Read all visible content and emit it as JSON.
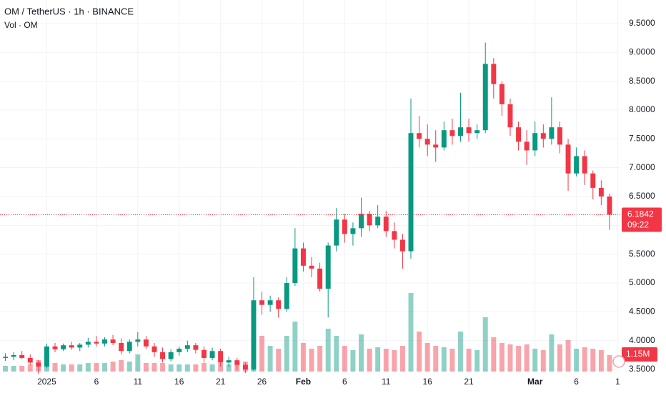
{
  "chart_data": {
    "type": "candlestick",
    "title": "OM / TetherUS · 1h · BINANCE",
    "subtitle": "Vol · OM",
    "up_color": "#089981",
    "down_color": "#f23645",
    "grid": true,
    "x": [
      -5,
      -4,
      -3,
      -2,
      -1,
      0,
      1,
      2,
      3,
      4,
      5,
      6,
      7,
      8,
      9,
      10,
      11,
      12,
      13,
      14,
      15,
      16,
      17,
      18,
      19,
      20,
      21,
      22,
      23,
      24,
      25,
      26,
      27,
      28,
      29,
      30,
      31,
      32,
      33,
      34,
      35,
      36,
      37,
      38,
      39,
      40,
      41,
      42,
      43,
      44,
      45,
      46,
      47,
      48,
      49,
      50,
      51,
      52,
      53,
      54,
      55,
      56,
      57,
      58,
      59,
      60,
      61,
      62,
      63,
      64,
      65,
      66,
      67,
      68
    ],
    "open": [
      3.7,
      3.72,
      3.75,
      3.7,
      3.62,
      3.55,
      3.9,
      3.85,
      3.92,
      3.88,
      3.93,
      3.98,
      3.95,
      4.02,
      3.96,
      3.82,
      3.98,
      4.02,
      3.9,
      3.8,
      3.68,
      3.8,
      3.86,
      3.92,
      3.84,
      3.7,
      3.82,
      3.62,
      3.66,
      3.58,
      3.5,
      4.7,
      4.62,
      4.7,
      4.55,
      5.0,
      5.6,
      5.3,
      5.25,
      4.9,
      5.65,
      6.1,
      5.85,
      5.95,
      6.2,
      6.0,
      6.15,
      5.9,
      5.75,
      5.55,
      7.6,
      7.5,
      7.4,
      7.35,
      7.65,
      7.55,
      7.7,
      7.6,
      7.65,
      8.8,
      8.45,
      8.1,
      7.7,
      7.45,
      7.3,
      7.6,
      7.5,
      7.7,
      7.4,
      6.9,
      7.2,
      6.9,
      6.65,
      6.5
    ],
    "high": [
      3.78,
      3.8,
      3.82,
      3.76,
      3.66,
      3.95,
      3.96,
      3.95,
      3.98,
      3.96,
      4.05,
      4.08,
      4.06,
      4.1,
      4.04,
      4.02,
      4.15,
      4.08,
      3.96,
      3.88,
      3.85,
      3.9,
      4.0,
      3.96,
      3.9,
      3.88,
      3.86,
      3.72,
      3.7,
      3.62,
      5.1,
      4.85,
      4.78,
      4.75,
      5.1,
      5.95,
      5.7,
      5.45,
      5.35,
      5.7,
      6.3,
      6.2,
      6.05,
      6.48,
      6.25,
      6.35,
      6.25,
      6.05,
      5.85,
      8.2,
      7.9,
      7.75,
      7.65,
      7.8,
      7.85,
      8.3,
      7.85,
      7.75,
      9.17,
      8.9,
      8.5,
      8.2,
      7.8,
      7.65,
      7.8,
      7.75,
      8.22,
      7.8,
      7.5,
      7.35,
      7.3,
      6.95,
      6.78,
      6.55
    ],
    "low": [
      3.65,
      3.66,
      3.68,
      3.58,
      3.42,
      3.52,
      3.8,
      3.82,
      3.84,
      3.82,
      3.88,
      3.9,
      3.9,
      3.92,
      3.76,
      3.78,
      3.9,
      3.86,
      3.72,
      3.62,
      3.64,
      3.74,
      3.8,
      3.78,
      3.62,
      3.66,
      3.55,
      3.54,
      3.5,
      3.44,
      3.48,
      4.45,
      4.5,
      4.4,
      4.5,
      4.95,
      5.2,
      5.1,
      4.85,
      4.4,
      5.55,
      5.7,
      5.65,
      5.8,
      5.9,
      5.95,
      5.8,
      5.6,
      5.25,
      5.42,
      7.35,
      7.2,
      7.1,
      7.3,
      7.4,
      7.45,
      7.45,
      7.5,
      7.6,
      8.2,
      7.9,
      7.55,
      7.3,
      7.05,
      7.2,
      7.35,
      7.4,
      7.25,
      6.6,
      6.85,
      6.7,
      6.45,
      6.35,
      5.92
    ],
    "close": [
      3.72,
      3.75,
      3.7,
      3.62,
      3.55,
      3.9,
      3.85,
      3.92,
      3.88,
      3.93,
      3.98,
      3.95,
      4.02,
      3.96,
      3.82,
      3.98,
      4.02,
      3.9,
      3.8,
      3.68,
      3.8,
      3.86,
      3.92,
      3.84,
      3.7,
      3.82,
      3.62,
      3.66,
      3.58,
      3.5,
      4.7,
      4.62,
      4.7,
      4.55,
      5.0,
      5.6,
      5.3,
      5.25,
      4.9,
      5.65,
      6.1,
      5.85,
      5.95,
      6.2,
      6.0,
      6.15,
      5.9,
      5.75,
      5.55,
      7.6,
      7.5,
      7.4,
      7.35,
      7.65,
      7.55,
      7.7,
      7.6,
      7.65,
      8.8,
      8.45,
      8.1,
      7.7,
      7.45,
      7.3,
      7.6,
      7.5,
      7.7,
      7.4,
      6.9,
      7.2,
      6.9,
      6.65,
      6.5,
      6.1842
    ],
    "volume": [
      0.4,
      0.4,
      0.4,
      0.5,
      0.8,
      1.3,
      0.6,
      0.5,
      0.5,
      0.5,
      0.6,
      0.6,
      0.6,
      0.7,
      0.8,
      0.7,
      1.2,
      0.6,
      0.6,
      0.6,
      0.5,
      0.5,
      0.5,
      0.5,
      0.6,
      0.5,
      0.6,
      0.5,
      0.6,
      0.7,
      4.5,
      2.5,
      1.8,
      1.6,
      2.5,
      3.5,
      2.0,
      1.6,
      1.8,
      3.0,
      2.5,
      1.8,
      1.5,
      2.6,
      1.6,
      1.7,
      1.6,
      1.5,
      1.8,
      5.5,
      2.8,
      2.0,
      1.8,
      1.7,
      1.6,
      2.8,
      1.6,
      1.5,
      3.8,
      2.4,
      2.0,
      1.9,
      1.8,
      1.9,
      1.6,
      1.5,
      2.6,
      1.9,
      2.2,
      1.6,
      1.7,
      1.6,
      1.5,
      1.15
    ],
    "last_volume_label": "1.15M",
    "last_price": 6.1842,
    "countdown": "09:22",
    "xlim": [
      -5.65,
      69.3
    ],
    "ylim": [
      3.092,
      9.908
    ],
    "xticks": [
      {
        "value": 0,
        "label": "2025"
      },
      6,
      11,
      16,
      21,
      26,
      {
        "value": 31,
        "label": "Feb"
      },
      {
        "value": 36,
        "label": "6"
      },
      {
        "value": 41,
        "label": "11"
      },
      {
        "value": 46,
        "label": "16"
      },
      {
        "value": 51,
        "label": "21"
      },
      {
        "value": 59,
        "label": "Mar"
      },
      {
        "value": 64,
        "label": "6"
      },
      {
        "value": 69,
        "label": "1"
      }
    ],
    "yticks": [
      {
        "value": 3.5,
        "label": "3.5000"
      },
      {
        "value": 4,
        "label": "4.0000"
      },
      {
        "value": 4.5,
        "label": "4.5000"
      },
      {
        "value": 5,
        "label": "5.0000"
      },
      {
        "value": 5.5,
        "label": "5.5000"
      },
      {
        "value": 6,
        "label": "6.0000"
      },
      {
        "value": 6.5,
        "label": "6.5000"
      },
      {
        "value": 7,
        "label": "7.0000"
      },
      {
        "value": 7.5,
        "label": "7.5000"
      },
      {
        "value": 8,
        "label": "8.0000"
      },
      {
        "value": 8.5,
        "label": "8.5000"
      },
      {
        "value": 9,
        "label": "9.0000"
      },
      {
        "value": 9.5,
        "label": "9.5000"
      }
    ]
  }
}
